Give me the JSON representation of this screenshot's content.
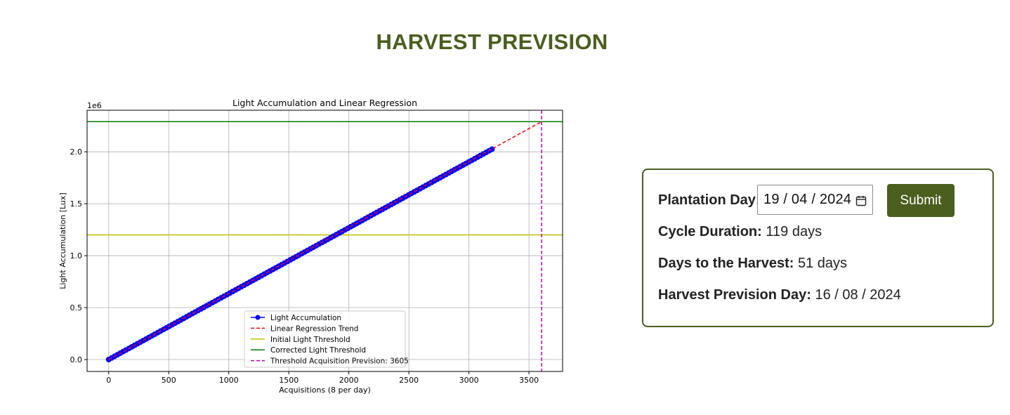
{
  "page": {
    "title": "HARVEST PREVISION"
  },
  "form": {
    "plantation_label": "Plantation Day:",
    "plantation_value": "19 / 04 / 2024",
    "submit_label": "Submit",
    "cycle_label": "Cycle Duration:",
    "cycle_value": "119 days",
    "days_label": "Days to the Harvest:",
    "days_value": "51 days",
    "harvest_label": "Harvest Prevision Day:",
    "harvest_value": "16 / 08 / 2024"
  },
  "colors": {
    "brand": "#4a5e1e",
    "accumulation": "#0000ff",
    "regression": "#ff0000",
    "initial_threshold": "#bfbf00",
    "corrected_threshold": "#007f00",
    "prevision_line": "#bf00bf"
  },
  "icons": {
    "calendar": "calendar-icon"
  },
  "chart_data": {
    "type": "line",
    "title": "Light Accumulation and Linear Regression",
    "xlabel": "Acquisitions (8 per day)",
    "ylabel": "Light Accumulation [Lux]",
    "y_offset_label": "1e6",
    "xlim": [
      -180,
      3780
    ],
    "ylim": [
      -0.115,
      2.4
    ],
    "xticks": [
      0,
      500,
      1000,
      1500,
      2000,
      2500,
      3000,
      3500
    ],
    "xtick_labels": [
      "0",
      "500",
      "1000",
      "1500",
      "2000",
      "2500",
      "3000",
      "3500"
    ],
    "yticks": [
      0.0,
      0.5,
      1.0,
      1.5,
      2.0
    ],
    "ytick_labels": [
      "0.0",
      "0.5",
      "1.0",
      "1.5",
      "2.0"
    ],
    "grid": true,
    "legend_position": "lower-center",
    "series": [
      {
        "name": "Light Accumulation",
        "style": "line-markers",
        "x": [
          0,
          3200
        ],
        "y": [
          0.0,
          2.03
        ],
        "marker_step": 24
      },
      {
        "name": "Linear Regression Trend",
        "style": "dashed",
        "x": [
          0,
          3605
        ],
        "y": [
          0.0,
          2.29
        ]
      },
      {
        "name": "Initial Light Threshold",
        "style": "hline",
        "y": 1.2
      },
      {
        "name": "Corrected Light Threshold",
        "style": "hline",
        "y": 2.29
      },
      {
        "name": "Threshold Acquisition Prevision: 3605",
        "style": "vline-dashed",
        "x": 3605
      }
    ]
  }
}
